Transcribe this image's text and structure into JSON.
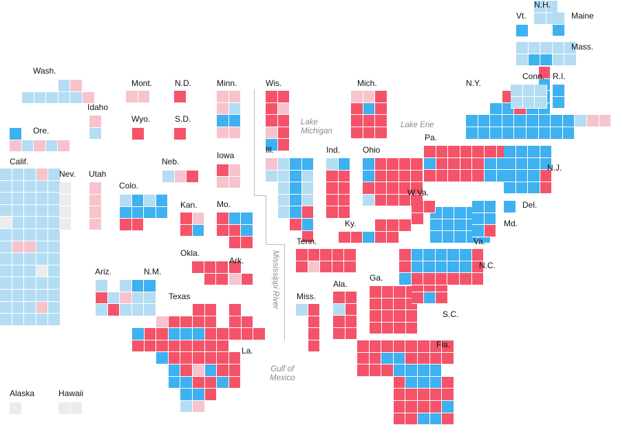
{
  "colors": {
    "D": "#3fb0f0",
    "d": "#b4ddf4",
    "R": "#f45369",
    "r": "#f7c3cc",
    "n": "#ececec"
  },
  "state_labels": [
    {
      "id": "wash",
      "text": "Wash."
    },
    {
      "id": "ore",
      "text": "Ore."
    },
    {
      "id": "calif",
      "text": "Calif."
    },
    {
      "id": "idaho",
      "text": "Idaho"
    },
    {
      "id": "nev",
      "text": "Nev."
    },
    {
      "id": "utah",
      "text": "Utah"
    },
    {
      "id": "ariz",
      "text": "Ariz."
    },
    {
      "id": "mont",
      "text": "Mont."
    },
    {
      "id": "wyo",
      "text": "Wyo."
    },
    {
      "id": "colo",
      "text": "Colo."
    },
    {
      "id": "nm",
      "text": "N.M."
    },
    {
      "id": "nd",
      "text": "N.D."
    },
    {
      "id": "sd",
      "text": "S.D."
    },
    {
      "id": "neb",
      "text": "Neb."
    },
    {
      "id": "kan",
      "text": "Kan."
    },
    {
      "id": "okla",
      "text": "Okla."
    },
    {
      "id": "texas",
      "text": "Texas"
    },
    {
      "id": "minn",
      "text": "Minn."
    },
    {
      "id": "iowa",
      "text": "Iowa"
    },
    {
      "id": "mo",
      "text": "Mo."
    },
    {
      "id": "ark",
      "text": "Ark."
    },
    {
      "id": "la",
      "text": "La."
    },
    {
      "id": "wis",
      "text": "Wis."
    },
    {
      "id": "ill",
      "text": "Ill."
    },
    {
      "id": "mich",
      "text": "Mich."
    },
    {
      "id": "ind",
      "text": "Ind."
    },
    {
      "id": "ohio",
      "text": "Ohio"
    },
    {
      "id": "ky",
      "text": "Ky."
    },
    {
      "id": "tenn",
      "text": "Tenn."
    },
    {
      "id": "miss",
      "text": "Miss."
    },
    {
      "id": "ala",
      "text": "Ala."
    },
    {
      "id": "ga",
      "text": "Ga."
    },
    {
      "id": "fla",
      "text": "Fla."
    },
    {
      "id": "sc",
      "text": "S.C."
    },
    {
      "id": "nc",
      "text": "N.C."
    },
    {
      "id": "va",
      "text": "Va."
    },
    {
      "id": "wva",
      "text": "W.Va."
    },
    {
      "id": "pa",
      "text": "Pa."
    },
    {
      "id": "ny",
      "text": "N.Y."
    },
    {
      "id": "vt",
      "text": "Vt."
    },
    {
      "id": "nh",
      "text": "N.H."
    },
    {
      "id": "maine",
      "text": "Maine"
    },
    {
      "id": "mass",
      "text": "Mass."
    },
    {
      "id": "conn",
      "text": "Conn."
    },
    {
      "id": "ri",
      "text": "R.I."
    },
    {
      "id": "nj",
      "text": "N.J."
    },
    {
      "id": "del",
      "text": "Del."
    },
    {
      "id": "md",
      "text": "Md."
    },
    {
      "id": "alaska",
      "text": "Alaska"
    },
    {
      "id": "hawaii",
      "text": "Hawaii"
    }
  ],
  "geo_labels": {
    "lake_michigan": "Lake\nMichigan",
    "lake_erie": "Lake Erie",
    "gulf": "Gulf of\nMexico",
    "mississippi": "Mississippi River"
  },
  "districts": {
    "wash": [
      "...dr..",
      "dddddr"
    ],
    "ore": [
      "D....",
      "rdrdr"
    ],
    "calif": [
      "dddrd",
      "ddddd",
      "ddddd",
      "ddddd",
      "ndddd",
      "ddddd",
      "drrdd",
      "ddddd",
      "dddnd",
      "ddddd",
      "ddddd",
      "dddrd",
      "ddddd"
    ],
    "idaho": [
      "r",
      "d"
    ],
    "nev": [
      "n",
      "n",
      "n",
      "n"
    ],
    "utah": [
      "r",
      "r",
      "r",
      "r"
    ],
    "ariz": [
      "d.dD",
      "Rdrd",
      "dRdd"
    ],
    "mont": [
      "rr"
    ],
    "wyo": [
      "R"
    ],
    "colo": [
      "dDdD",
      "DDDD",
      "RR.."
    ],
    "nm": [
      "D",
      "d",
      "d"
    ],
    "nd": [
      "R"
    ],
    "sd": [
      "R"
    ],
    "neb": [
      "drR"
    ],
    "kan": [
      "Rr",
      "RD"
    ],
    "okla": [
      "RRR",
      ".RR"
    ],
    "texas": [
      ".....RR..",
      "..rRRRR..",
      "DRRDDDRR.",
      "RRRRRRRR.",
      "..DRRRRRR",
      "...DRrDRR",
      "...DDRRDR",
      "....DDR..",
      "....dr..."
    ],
    "minn": [
      "rr",
      "rd",
      "DD",
      "rr"
    ],
    "iowa": [
      "Rr",
      "rr"
    ],
    "mo": [
      "RDD",
      "RRD",
      ".RR"
    ],
    "ark": [
      "R.",
      "rR"
    ],
    "la": [
      "R..",
      "RR.",
      "RRR"
    ],
    "wis": [
      "RR",
      "Rr",
      "RR",
      "rR",
      "DR"
    ],
    "ill": [
      "rdDD",
      "ddDd",
      ".dDd",
      ".dDd",
      ".dDR",
      "..RD",
      "...R"
    ],
    "mich": [
      "rrR",
      "RDR",
      "RRR",
      "RRR"
    ],
    "ind": [
      "dD",
      "RR",
      "RR",
      "RR",
      "RR"
    ],
    "ohio": [
      "DRRRR",
      "DRRRR",
      "RRRRR",
      "dRRRR"
    ],
    "ky": [
      "...RRR",
      "RRDRR."
    ],
    "tenn": [
      "RRRRR",
      "RrRRR"
    ],
    "miss": [
      "dR",
      ".R",
      ".R",
      ".R"
    ],
    "ala": [
      "RR",
      "dR",
      "RR",
      "RR"
    ],
    "ga": [
      "RRRR",
      "RRRR",
      "RRRR",
      "RRRR"
    ],
    "fla": [
      "RRRRRRRR",
      "RRDDRRRR",
      "RRRDDDD.",
      "...RDDDR",
      "...RRRRR",
      "...RRRRD",
      "...RRDDR"
    ],
    "sc": [
      "RRR",
      "RDR"
    ],
    "nc": [
      "RDDDDDR",
      "RDDDDDR",
      "DRRRRRR"
    ],
    "va": [
      "DDDDD",
      "DDDDD",
      "DDDDD"
    ],
    "wva": [
      "RR",
      "R."
    ],
    "pa": [
      "RRRRRRR",
      "DRRRRDD",
      "RRRRRDD"
    ],
    "ny": [
      "......R",
      "......D",
      "...RRDD",
      "..DDRDD",
      "DDDDDDDDDdrr",
      "DDDDDDDDD..."
    ],
    "vt": [
      "D"
    ],
    "nh": [
      "dd",
      "dd"
    ],
    "maine": [
      "d",
      "D"
    ],
    "mass": [
      "ddddd",
      "dDDdd"
    ],
    "conn": [
      "ddd",
      "ddd"
    ],
    "ri": [
      "D",
      "D"
    ],
    "nj": [
      "DDDD",
      "DDDD",
      "DDDR",
      "DDDR"
    ],
    "del": [
      "D"
    ],
    "md": [
      "DD",
      "DD",
      "DR"
    ],
    "alaska": [
      "n"
    ],
    "hawaii": [
      "nn"
    ]
  }
}
